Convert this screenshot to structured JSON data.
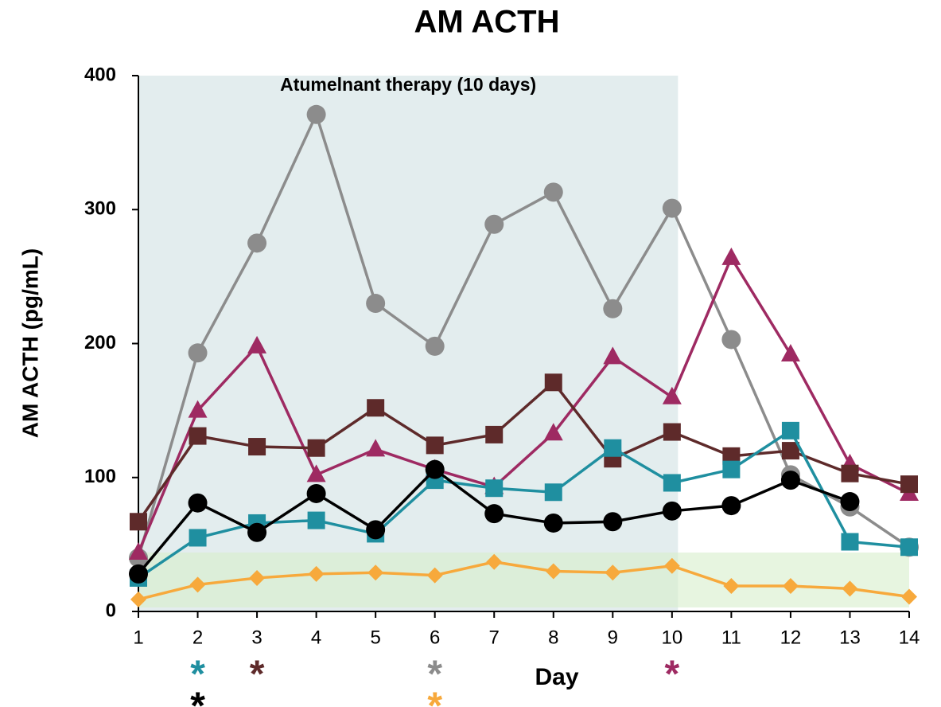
{
  "chart_data": {
    "type": "line",
    "title": "AM ACTH",
    "x_label": "Day",
    "y_label": "AM ACTH (pg/mL)",
    "x": [
      1,
      2,
      3,
      4,
      5,
      6,
      7,
      8,
      9,
      10,
      11,
      12,
      13,
      14
    ],
    "xlim": [
      1,
      14
    ],
    "xticks": [
      1,
      2,
      3,
      4,
      5,
      6,
      7,
      8,
      9,
      10,
      11,
      12,
      13,
      14
    ],
    "ylim": [
      0,
      400
    ],
    "yticks": [
      0,
      100,
      200,
      300,
      400
    ],
    "shaded_region": {
      "label": "Atumelnant therapy (10 days)",
      "x": [
        1,
        10.1
      ],
      "y": [
        0,
        400
      ],
      "color": "#dce9ea"
    },
    "reference_band": {
      "x": [
        1,
        14
      ],
      "y": [
        3,
        44
      ],
      "color": "#d7efcc"
    },
    "series": [
      {
        "color": "#8c8c8c",
        "marker": "circle",
        "values": [
          40,
          193,
          275,
          371,
          230,
          198,
          289,
          313,
          226,
          301,
          203,
          102,
          78,
          48
        ]
      },
      {
        "color": "#9e2a62",
        "marker": "triangle",
        "values": [
          44,
          150,
          198,
          102,
          121,
          106,
          93,
          133,
          190,
          160,
          264,
          192,
          110,
          88
        ]
      },
      {
        "color": "#5e2a2a",
        "marker": "square",
        "values": [
          67,
          131,
          123,
          122,
          152,
          124,
          132,
          171,
          114,
          134,
          116,
          120,
          103,
          95
        ]
      },
      {
        "color": "#1f8fa0",
        "marker": "square",
        "values": [
          25,
          55,
          66,
          68,
          58,
          98,
          92,
          89,
          122,
          96,
          106,
          135,
          52,
          48
        ]
      },
      {
        "color": "#000000",
        "marker": "circle",
        "values": [
          28,
          81,
          59,
          88,
          61,
          106,
          73,
          66,
          67,
          75,
          79,
          98,
          82,
          null
        ]
      },
      {
        "color": "#f7a93c",
        "marker": "diamond",
        "values": [
          9,
          20,
          25,
          28,
          29,
          27,
          37,
          30,
          29,
          34,
          19,
          19,
          17,
          11
        ]
      }
    ],
    "annotations": [
      {
        "text": "*",
        "x": 2,
        "color": "#1f8fa0"
      },
      {
        "text": "*",
        "x": 2,
        "color": "#000000"
      },
      {
        "text": "*",
        "x": 3,
        "color": "#5e2a2a"
      },
      {
        "text": "*",
        "x": 6,
        "color": "#8c8c8c"
      },
      {
        "text": "*",
        "x": 6,
        "color": "#f7a93c"
      },
      {
        "text": "*",
        "x": 10,
        "color": "#9e2a62"
      }
    ]
  }
}
